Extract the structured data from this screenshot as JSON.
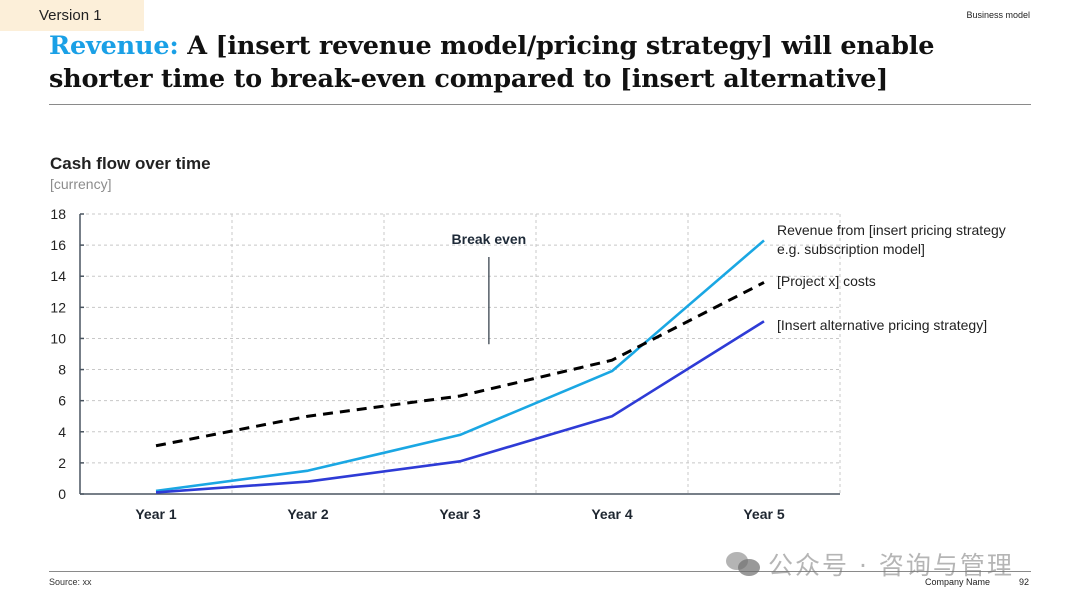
{
  "version_tag": "Version 1",
  "section_label": "Business model",
  "headline": {
    "accent": "Revenue:",
    "text": " A [insert revenue model/pricing strategy] will enable shorter time to break-even compared to [insert alternative]"
  },
  "colors": {
    "accent": "#1aa0e6",
    "revenue_line": "#1aa7e3",
    "alternative_line": "#2e3bd6",
    "costs_line": "#000000",
    "version_tag_bg": "#fcefd9"
  },
  "chart_data": {
    "type": "line",
    "title": "Cash flow over time",
    "subtitle": "[currency]",
    "xlabel": "",
    "ylabel": "[currency]",
    "categories": [
      "Year 1",
      "Year 2",
      "Year 3",
      "Year 4",
      "Year 5"
    ],
    "ylim": [
      0,
      18
    ],
    "yticks": [
      0,
      2,
      4,
      6,
      8,
      10,
      12,
      14,
      16,
      18
    ],
    "grid": true,
    "legend_placement": "right (inline labels at line ends)",
    "series": [
      {
        "name": "Revenue from [insert pricing strategy e.g. subscription model]",
        "label_lines": [
          "Revenue from [insert pricing strategy",
          "e.g. subscription model]"
        ],
        "style": "solid",
        "values": [
          0.2,
          1.5,
          3.8,
          7.9,
          16.3
        ]
      },
      {
        "name": "[Project x] costs",
        "label_lines": [
          "[Project x] costs"
        ],
        "style": "dashed",
        "values": [
          3.1,
          5.0,
          6.3,
          8.6,
          13.6
        ]
      },
      {
        "name": "[Insert alternative pricing strategy]",
        "label_lines": [
          "[Insert alternative pricing strategy]"
        ],
        "style": "solid",
        "values": [
          0.1,
          0.8,
          2.1,
          5.0,
          11.1
        ]
      }
    ],
    "annotations": [
      {
        "text": "Break even",
        "x": 3.19,
        "y": 9.5
      }
    ]
  },
  "footer": {
    "source": "Source: xx",
    "company": "Company Name",
    "page": "92"
  },
  "watermark": {
    "icon": "wechat-icon",
    "text": "公众号 · 咨询与管理"
  }
}
